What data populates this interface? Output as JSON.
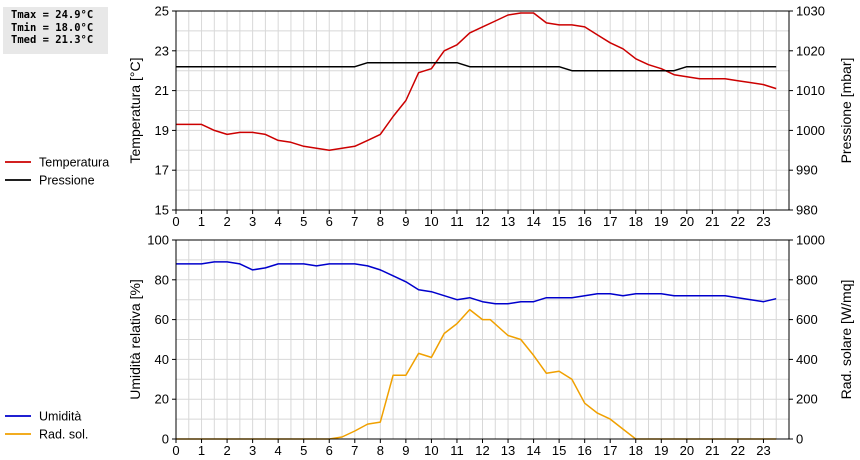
{
  "stats": {
    "tmax": "Tmax = 24.9°C",
    "tmin": "Tmin = 18.0°C",
    "tmed": "Tmed = 21.3°C"
  },
  "chart_data": [
    {
      "type": "line",
      "xlim": [
        0,
        24
      ],
      "x_ticks": [
        "0",
        "1",
        "2",
        "3",
        "4",
        "5",
        "6",
        "7",
        "8",
        "9",
        "10",
        "11",
        "12",
        "13",
        "14",
        "15",
        "16",
        "17",
        "18",
        "19",
        "20",
        "21",
        "22",
        "23"
      ],
      "grid": true,
      "legend": "left",
      "left_axis": {
        "label": "Temperatura [°C]",
        "lim": [
          15,
          25
        ],
        "ticks": [
          "15",
          "17",
          "19",
          "21",
          "23",
          "25"
        ]
      },
      "right_axis": {
        "label": "Pressione [mbar]",
        "lim": [
          980,
          1030
        ],
        "ticks": [
          "980",
          "990",
          "1000",
          "1010",
          "1020",
          "1030"
        ]
      },
      "series": [
        {
          "name": "Temperatura",
          "axis": "left",
          "color": "#cc0000",
          "x": [
            0,
            0.5,
            1,
            1.5,
            2,
            2.5,
            3,
            3.5,
            4,
            4.5,
            5,
            5.5,
            6,
            6.5,
            7,
            7.5,
            8,
            8.5,
            9,
            9.5,
            10,
            10.5,
            11,
            11.5,
            12,
            12.5,
            13,
            13.5,
            14,
            14.5,
            15,
            15.5,
            16,
            16.5,
            17,
            17.5,
            18,
            18.5,
            19,
            19.5,
            20,
            20.5,
            21,
            21.5,
            22,
            22.5,
            23,
            23.5
          ],
          "y": [
            19.3,
            19.3,
            19.3,
            19.0,
            18.8,
            18.9,
            18.9,
            18.8,
            18.5,
            18.4,
            18.2,
            18.1,
            18.0,
            18.1,
            18.2,
            18.5,
            18.8,
            19.7,
            20.5,
            21.9,
            22.1,
            23.0,
            23.3,
            23.9,
            24.2,
            24.5,
            24.8,
            24.9,
            24.9,
            24.4,
            24.3,
            24.3,
            24.2,
            23.8,
            23.4,
            23.1,
            22.6,
            22.3,
            22.1,
            21.8,
            21.7,
            21.6,
            21.6,
            21.6,
            21.5,
            21.4,
            21.3,
            21.1
          ]
        },
        {
          "name": "Pressione",
          "axis": "right",
          "color": "#000000",
          "x": [
            0,
            7,
            7.5,
            11,
            11.5,
            15,
            15.5,
            19.5,
            20,
            23.5
          ],
          "y": [
            1016,
            1016,
            1017,
            1017,
            1016,
            1016,
            1015,
            1015,
            1016,
            1016
          ]
        }
      ]
    },
    {
      "type": "line",
      "xlim": [
        0,
        24
      ],
      "x_ticks": [
        "0",
        "1",
        "2",
        "3",
        "4",
        "5",
        "6",
        "7",
        "8",
        "9",
        "10",
        "11",
        "12",
        "13",
        "14",
        "15",
        "16",
        "17",
        "18",
        "19",
        "20",
        "21",
        "22",
        "23"
      ],
      "grid": true,
      "legend": "left",
      "left_axis": {
        "label": "Umidità relativa [%]",
        "lim": [
          0,
          100
        ],
        "ticks": [
          "0",
          "20",
          "40",
          "60",
          "80",
          "100"
        ]
      },
      "right_axis": {
        "label": "Rad. solare [W/mq]",
        "lim": [
          0,
          1000
        ],
        "ticks": [
          "0",
          "200",
          "400",
          "600",
          "800",
          "1000"
        ]
      },
      "series": [
        {
          "name": "Umidità",
          "axis": "left",
          "color": "#0000cc",
          "x": [
            0,
            0.5,
            1,
            1.5,
            2,
            2.5,
            3,
            3.5,
            4,
            4.5,
            5,
            5.5,
            6,
            6.5,
            7,
            7.5,
            8,
            8.5,
            9,
            9.5,
            10,
            10.5,
            11,
            11.5,
            12,
            12.5,
            13,
            13.5,
            14,
            14.5,
            15,
            15.5,
            16,
            16.5,
            17,
            17.5,
            18,
            18.5,
            19,
            19.5,
            20,
            20.5,
            21,
            21.5,
            22,
            22.5,
            23,
            23.5
          ],
          "y": [
            88,
            88,
            88,
            89,
            89,
            88,
            85,
            86,
            88,
            88,
            88,
            87,
            88,
            88,
            88,
            87,
            85,
            82,
            79,
            75,
            74,
            72,
            70,
            71,
            69,
            68,
            68,
            69,
            69,
            71,
            71,
            71,
            72,
            73,
            73,
            72,
            73,
            73,
            73,
            72,
            72,
            72,
            72,
            72,
            71,
            70,
            69,
            70.5
          ]
        },
        {
          "name": "Rad. sol.",
          "axis": "right",
          "color": "#f0a000",
          "x": [
            0,
            6,
            6.5,
            7,
            7.5,
            7.75,
            8,
            8.5,
            9,
            9.5,
            10,
            10.5,
            11,
            11.5,
            12,
            12.3,
            13,
            13.5,
            14,
            14.5,
            15,
            15.5,
            16,
            16.5,
            17,
            17.5,
            18,
            18.5,
            19,
            19.5,
            20,
            20.5,
            21,
            21.5,
            22,
            22.5,
            23,
            23.5
          ],
          "y": [
            0,
            0,
            10,
            40,
            75,
            80,
            85,
            320,
            320,
            430,
            410,
            530,
            580,
            650,
            600,
            600,
            520,
            500,
            420,
            330,
            340,
            300,
            180,
            130,
            100,
            50,
            0,
            0,
            0,
            0,
            0,
            0,
            0,
            0,
            0,
            0,
            0,
            0
          ]
        }
      ]
    }
  ]
}
